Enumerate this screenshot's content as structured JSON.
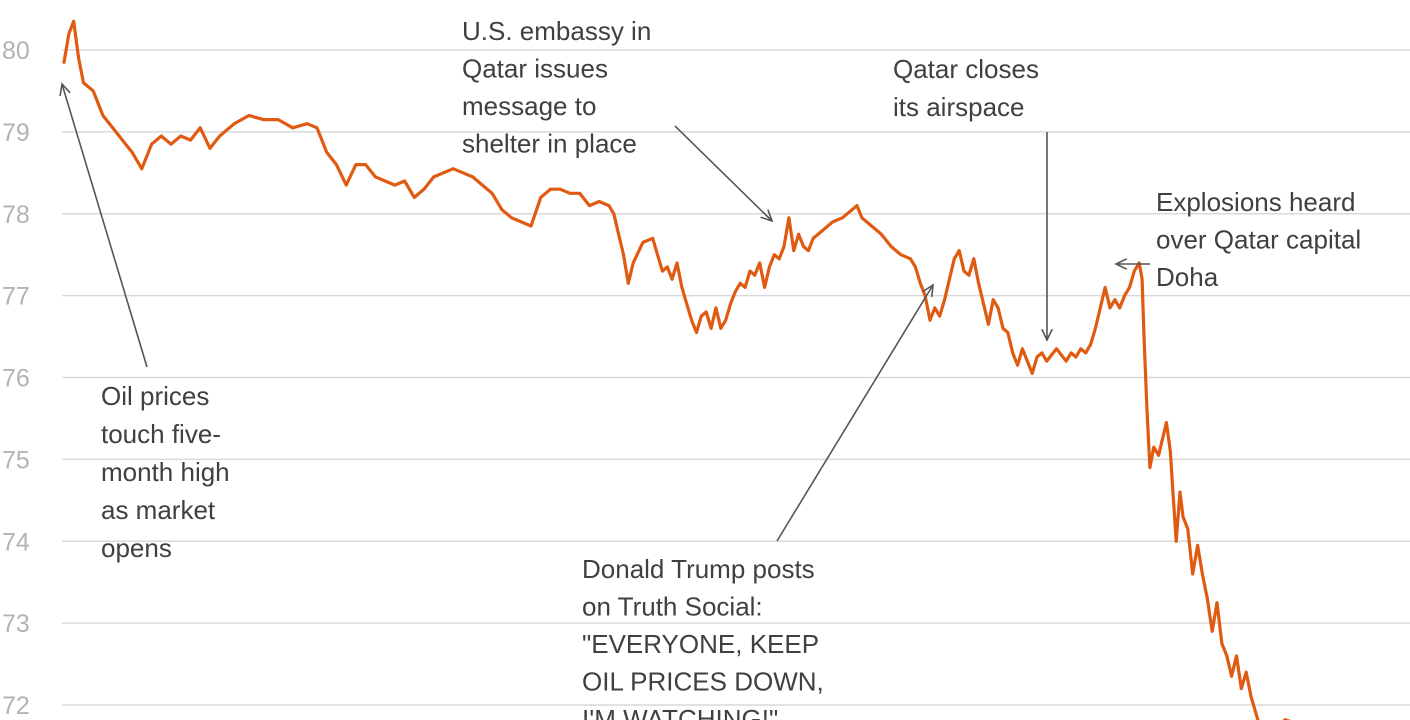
{
  "chart_data": {
    "type": "line",
    "title": "",
    "xlabel": "",
    "ylabel": "",
    "ylim": [
      71.85,
      80.45
    ],
    "yticks": [
      80,
      79,
      78,
      77,
      76,
      75,
      74,
      73,
      72
    ],
    "grid": true,
    "series": [
      {
        "color": "#e05a12",
        "points": [
          [
            0.0,
            79.85
          ],
          [
            0.5,
            80.2
          ],
          [
            1.0,
            80.35
          ],
          [
            1.5,
            79.9
          ],
          [
            2.0,
            79.6
          ],
          [
            3.0,
            79.5
          ],
          [
            4.0,
            79.2
          ],
          [
            5.0,
            79.05
          ],
          [
            6.0,
            78.9
          ],
          [
            7.0,
            78.75
          ],
          [
            8.0,
            78.55
          ],
          [
            9.0,
            78.85
          ],
          [
            10.0,
            78.95
          ],
          [
            11.0,
            78.85
          ],
          [
            12.0,
            78.95
          ],
          [
            13.0,
            78.9
          ],
          [
            14.0,
            79.05
          ],
          [
            15.0,
            78.8
          ],
          [
            16.0,
            78.95
          ],
          [
            17.5,
            79.1
          ],
          [
            19.0,
            79.2
          ],
          [
            20.5,
            79.15
          ],
          [
            22.0,
            79.15
          ],
          [
            23.5,
            79.05
          ],
          [
            25.0,
            79.1
          ],
          [
            26.0,
            79.05
          ],
          [
            27.0,
            78.75
          ],
          [
            28.0,
            78.6
          ],
          [
            29.0,
            78.35
          ],
          [
            30.0,
            78.6
          ],
          [
            31.0,
            78.6
          ],
          [
            32.0,
            78.45
          ],
          [
            33.0,
            78.4
          ],
          [
            34.0,
            78.35
          ],
          [
            35.0,
            78.4
          ],
          [
            36.0,
            78.2
          ],
          [
            37.0,
            78.3
          ],
          [
            38.0,
            78.45
          ],
          [
            39.0,
            78.5
          ],
          [
            40.0,
            78.55
          ],
          [
            41.0,
            78.5
          ],
          [
            42.0,
            78.45
          ],
          [
            43.0,
            78.35
          ],
          [
            44.0,
            78.25
          ],
          [
            45.0,
            78.05
          ],
          [
            46.0,
            77.95
          ],
          [
            47.0,
            77.9
          ],
          [
            48.0,
            77.85
          ],
          [
            49.0,
            78.2
          ],
          [
            50.0,
            78.3
          ],
          [
            51.0,
            78.3
          ],
          [
            52.0,
            78.25
          ],
          [
            53.0,
            78.25
          ],
          [
            54.0,
            78.1
          ],
          [
            55.0,
            78.15
          ],
          [
            56.0,
            78.1
          ],
          [
            56.5,
            78.0
          ],
          [
            57.0,
            77.75
          ],
          [
            57.5,
            77.5
          ],
          [
            58.0,
            77.15
          ],
          [
            58.5,
            77.4
          ],
          [
            59.5,
            77.65
          ],
          [
            60.5,
            77.7
          ],
          [
            61.0,
            77.5
          ],
          [
            61.5,
            77.3
          ],
          [
            62.0,
            77.35
          ],
          [
            62.5,
            77.2
          ],
          [
            63.0,
            77.4
          ],
          [
            63.5,
            77.1
          ],
          [
            64.0,
            76.9
          ],
          [
            64.5,
            76.7
          ],
          [
            65.0,
            76.55
          ],
          [
            65.5,
            76.75
          ],
          [
            66.0,
            76.8
          ],
          [
            66.5,
            76.6
          ],
          [
            67.0,
            76.85
          ],
          [
            67.5,
            76.6
          ],
          [
            68.0,
            76.7
          ],
          [
            68.5,
            76.9
          ],
          [
            69.0,
            77.05
          ],
          [
            69.5,
            77.15
          ],
          [
            70.0,
            77.1
          ],
          [
            70.5,
            77.3
          ],
          [
            71.0,
            77.25
          ],
          [
            71.5,
            77.4
          ],
          [
            72.0,
            77.1
          ],
          [
            72.5,
            77.35
          ],
          [
            73.0,
            77.5
          ],
          [
            73.5,
            77.45
          ],
          [
            74.0,
            77.6
          ],
          [
            74.5,
            77.95
          ],
          [
            75.0,
            77.55
          ],
          [
            75.5,
            77.75
          ],
          [
            76.0,
            77.6
          ],
          [
            76.5,
            77.55
          ],
          [
            77.0,
            77.7
          ],
          [
            78.0,
            77.8
          ],
          [
            79.0,
            77.9
          ],
          [
            80.0,
            77.95
          ],
          [
            81.0,
            78.05
          ],
          [
            81.5,
            78.1
          ],
          [
            82.0,
            77.95
          ],
          [
            83.0,
            77.85
          ],
          [
            84.0,
            77.75
          ],
          [
            85.0,
            77.6
          ],
          [
            86.0,
            77.5
          ],
          [
            87.0,
            77.45
          ],
          [
            87.5,
            77.35
          ],
          [
            88.0,
            77.15
          ],
          [
            88.5,
            77.0
          ],
          [
            89.0,
            76.7
          ],
          [
            89.5,
            76.85
          ],
          [
            90.0,
            76.75
          ],
          [
            90.5,
            76.95
          ],
          [
            91.0,
            77.2
          ],
          [
            91.5,
            77.45
          ],
          [
            92.0,
            77.55
          ],
          [
            92.5,
            77.3
          ],
          [
            93.0,
            77.25
          ],
          [
            93.5,
            77.45
          ],
          [
            94.0,
            77.15
          ],
          [
            94.5,
            76.9
          ],
          [
            95.0,
            76.65
          ],
          [
            95.5,
            76.95
          ],
          [
            96.0,
            76.85
          ],
          [
            96.5,
            76.6
          ],
          [
            97.0,
            76.55
          ],
          [
            97.5,
            76.3
          ],
          [
            98.0,
            76.15
          ],
          [
            98.5,
            76.35
          ],
          [
            99.0,
            76.2
          ],
          [
            99.5,
            76.05
          ],
          [
            100.0,
            76.25
          ],
          [
            100.5,
            76.3
          ],
          [
            101.0,
            76.2
          ],
          [
            102.0,
            76.35
          ],
          [
            103.0,
            76.2
          ],
          [
            103.5,
            76.3
          ],
          [
            104.0,
            76.25
          ],
          [
            104.5,
            76.35
          ],
          [
            105.0,
            76.3
          ],
          [
            105.5,
            76.4
          ],
          [
            106.0,
            76.6
          ],
          [
            106.5,
            76.85
          ],
          [
            107.0,
            77.1
          ],
          [
            107.5,
            76.85
          ],
          [
            108.0,
            76.95
          ],
          [
            108.5,
            76.85
          ],
          [
            109.0,
            77.0
          ],
          [
            109.5,
            77.1
          ],
          [
            110.0,
            77.3
          ],
          [
            110.5,
            77.4
          ],
          [
            110.8,
            77.2
          ],
          [
            111.0,
            76.5
          ],
          [
            111.3,
            75.6
          ],
          [
            111.6,
            74.9
          ],
          [
            112.0,
            75.15
          ],
          [
            112.5,
            75.05
          ],
          [
            113.0,
            75.3
          ],
          [
            113.3,
            75.45
          ],
          [
            113.7,
            75.1
          ],
          [
            114.0,
            74.55
          ],
          [
            114.3,
            74.0
          ],
          [
            114.7,
            74.6
          ],
          [
            115.0,
            74.3
          ],
          [
            115.5,
            74.15
          ],
          [
            116.0,
            73.6
          ],
          [
            116.5,
            73.95
          ],
          [
            117.0,
            73.6
          ],
          [
            117.5,
            73.3
          ],
          [
            118.0,
            72.9
          ],
          [
            118.5,
            73.25
          ],
          [
            119.0,
            72.75
          ],
          [
            119.5,
            72.6
          ],
          [
            120.0,
            72.35
          ],
          [
            120.5,
            72.6
          ],
          [
            121.0,
            72.2
          ],
          [
            121.5,
            72.4
          ],
          [
            122.0,
            72.1
          ],
          [
            122.5,
            71.9
          ],
          [
            123.0,
            71.7
          ],
          [
            124.0,
            71.6
          ],
          [
            125.0,
            71.75
          ],
          [
            125.5,
            71.82
          ],
          [
            126.0,
            71.8
          ]
        ]
      }
    ],
    "annotations": [
      {
        "lines": [
          "Oil prices",
          "touch five-",
          "month high",
          "as market",
          "opens"
        ]
      },
      {
        "lines": [
          "U.S. embassy in",
          "Qatar issues",
          "message to",
          "shelter in place"
        ]
      },
      {
        "lines": [
          "Qatar closes",
          "its airspace"
        ]
      },
      {
        "lines": [
          "Explosions heard",
          "over Qatar capital",
          "Doha"
        ]
      },
      {
        "lines": [
          "Donald Trump posts",
          "on Truth Social:",
          "\"EVERYONE, KEEP",
          "OIL PRICES DOWN,",
          "I'M WATCHING!\""
        ]
      }
    ]
  }
}
